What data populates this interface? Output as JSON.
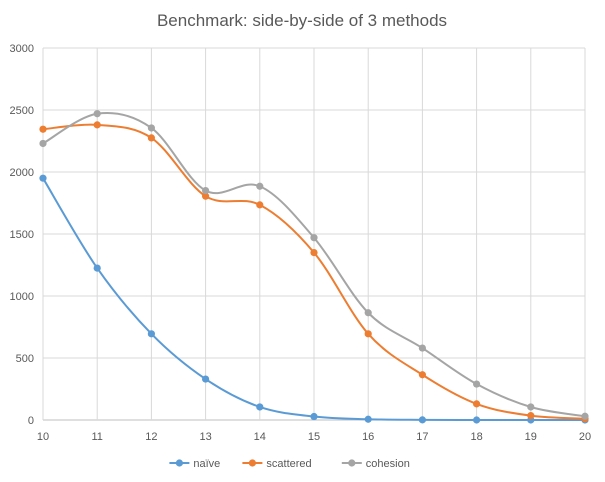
{
  "chart_data": {
    "type": "line",
    "title": "Benchmark: side-by-side of 3 methods",
    "xlabel": "",
    "ylabel": "",
    "x": [
      10,
      11,
      12,
      13,
      14,
      15,
      16,
      17,
      18,
      19,
      20
    ],
    "ylim": [
      0,
      3000
    ],
    "yticks": [
      0,
      500,
      1000,
      1500,
      2000,
      2500,
      3000
    ],
    "grid": true,
    "smooth": true,
    "legend_position": "bottom",
    "series": [
      {
        "name": "naïve",
        "color": "#5b9bd5",
        "values": [
          1950,
          1225,
          695,
          330,
          105,
          28,
          6,
          1,
          0,
          0,
          0
        ]
      },
      {
        "name": "scattered",
        "color": "#ed7d31",
        "values": [
          2345,
          2380,
          2275,
          1805,
          1735,
          1350,
          695,
          365,
          130,
          35,
          10
        ]
      },
      {
        "name": "cohesion",
        "color": "#a5a5a5",
        "values": [
          2230,
          2470,
          2355,
          1850,
          1885,
          1470,
          865,
          580,
          290,
          105,
          30
        ]
      }
    ]
  }
}
